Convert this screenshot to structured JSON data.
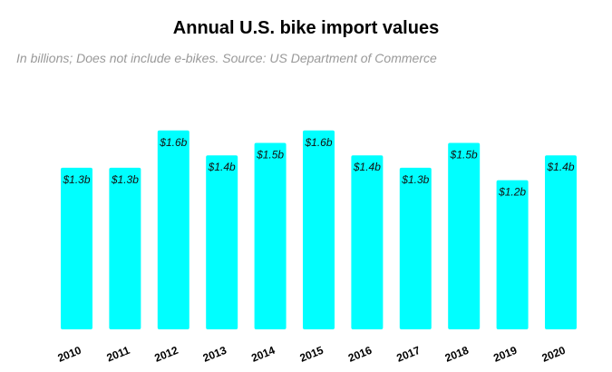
{
  "chart_data": {
    "type": "bar",
    "title": "Annual U.S. bike import values",
    "subtitle": "In billions; Does not include e-bikes. Source: US Department of Commerce",
    "categories": [
      "2010",
      "2011",
      "2012",
      "2013",
      "2014",
      "2015",
      "2016",
      "2017",
      "2018",
      "2019",
      "2020"
    ],
    "values": [
      1.3,
      1.3,
      1.6,
      1.4,
      1.5,
      1.6,
      1.4,
      1.3,
      1.5,
      1.2,
      1.4
    ],
    "data_labels": [
      "$1.3b",
      "$1.3b",
      "$1.6b",
      "$1.4b",
      "$1.5b",
      "$1.6b",
      "$1.4b",
      "$1.3b",
      "$1.5b",
      "$1.2b",
      "$1.4b"
    ],
    "xlabel": "",
    "ylabel": "",
    "ylim": [
      0,
      1.6
    ],
    "grid": false,
    "bar_color": "#00FFFF"
  }
}
